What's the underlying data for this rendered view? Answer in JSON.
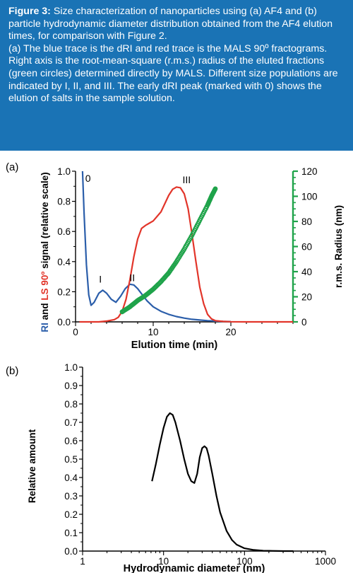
{
  "caption": {
    "label": "Figure 3:",
    "text": "Size characterization of nanoparticles using (a) AF4 and (b) particle hydrodynamic diameter distribution obtained from the AF4 elution times, for comparison with Figure 2.",
    "text2": "(a) The blue trace is the dRI and red trace is the MALS 90º fractograms. Right axis is the root-mean-square (r.m.s.) radius of the eluted fractions (green circles) determined directly by MALS. Different size populations are indicated by I, II, and III. The early dRI peak (marked with 0) shows the elution of salts in the sample solution."
  },
  "colors": {
    "caption_bg": "#1a73b5",
    "ri": "#2b5eaa",
    "ls": "#e2352a",
    "radius": "#1fa34a",
    "hydro": "#000000"
  },
  "chart_data": [
    {
      "panel_label": "(a)",
      "type": "line",
      "xlabel": "Elution time (min)",
      "ylabel_parts": [
        "RI",
        " and ",
        "LS 90º",
        " signal (relative scale)"
      ],
      "y2label": "r.m.s. Radius (nm)",
      "xlim": [
        0,
        28
      ],
      "ylim": [
        0,
        1.0
      ],
      "y2lim": [
        0,
        120
      ],
      "xticks": [
        0,
        10,
        20
      ],
      "xtick_labels": [
        "0",
        "10",
        "20"
      ],
      "yticks": [
        0,
        0.2,
        0.4,
        0.6,
        0.8,
        1.0
      ],
      "ytick_labels": [
        "0.0",
        "0.2",
        "0.4",
        "0.6",
        "0.8",
        "1.0"
      ],
      "y2ticks": [
        0,
        20,
        40,
        60,
        80,
        100,
        120
      ],
      "y2tick_labels": [
        "0",
        "20",
        "40",
        "60",
        "80",
        "100",
        "120"
      ],
      "annotations": [
        {
          "text": "0",
          "x": 1.6,
          "y": 0.93
        },
        {
          "text": "I",
          "x": 3.2,
          "y": 0.26
        },
        {
          "text": "II",
          "x": 7.3,
          "y": 0.27
        },
        {
          "text": "III",
          "x": 14.3,
          "y": 0.92
        }
      ],
      "series": [
        {
          "key": "ri",
          "style": "line",
          "x": [
            0.9,
            1.1,
            1.4,
            1.7,
            2.0,
            2.4,
            3.0,
            3.5,
            4.0,
            4.6,
            5.2,
            5.8,
            6.4,
            7.0,
            7.5,
            8.0,
            8.6,
            9.2,
            10,
            11,
            12,
            13,
            14,
            15,
            16,
            17,
            18,
            19,
            20
          ],
          "y": [
            1.0,
            0.72,
            0.38,
            0.18,
            0.11,
            0.13,
            0.19,
            0.21,
            0.19,
            0.15,
            0.13,
            0.17,
            0.22,
            0.25,
            0.245,
            0.22,
            0.18,
            0.14,
            0.1,
            0.07,
            0.05,
            0.035,
            0.025,
            0.017,
            0.012,
            0.008,
            0.005,
            0.003,
            0.002
          ]
        },
        {
          "key": "ls",
          "style": "line",
          "x": [
            0.5,
            2,
            3,
            4,
            5,
            5.5,
            6,
            6.5,
            7,
            7.5,
            8,
            8.5,
            9,
            9.5,
            10,
            11,
            12,
            12.5,
            13,
            13.5,
            14,
            14.5,
            15,
            15.5,
            16,
            16.5,
            17,
            17.5,
            18,
            19,
            20,
            22,
            24,
            26,
            28
          ],
          "y": [
            0.0,
            0.0,
            0.0,
            0.005,
            0.015,
            0.03,
            0.07,
            0.15,
            0.28,
            0.43,
            0.55,
            0.62,
            0.64,
            0.655,
            0.67,
            0.73,
            0.84,
            0.88,
            0.895,
            0.89,
            0.85,
            0.75,
            0.58,
            0.4,
            0.23,
            0.12,
            0.05,
            0.02,
            0.008,
            0.003,
            0.001,
            0.0,
            0.0,
            0.0,
            0.0
          ]
        },
        {
          "key": "radius",
          "style": "markers",
          "axis": "y2",
          "x": [
            6.0,
            7.0,
            8.0,
            9.0,
            10.0,
            11.0,
            12.0,
            13.0,
            14.0,
            15.0,
            16.0,
            17.0,
            17.5,
            18.0
          ],
          "y": [
            8,
            12,
            17,
            21,
            26,
            32,
            39,
            48,
            58,
            69,
            81,
            93,
            100,
            106
          ]
        }
      ]
    },
    {
      "panel_label": "(b)",
      "type": "line",
      "xscale": "log",
      "xlabel": "Hydrodynamic diameter (nm)",
      "ylabel": "Relative amount",
      "xlim": [
        1,
        1000
      ],
      "ylim": [
        0,
        1.0
      ],
      "xticks": [
        1,
        10,
        100,
        1000
      ],
      "xtick_labels": [
        "1",
        "10",
        "100",
        "1000"
      ],
      "yticks": [
        0,
        0.1,
        0.2,
        0.3,
        0.4,
        0.5,
        0.6,
        0.7,
        0.8,
        0.9,
        1.0
      ],
      "ytick_labels": [
        "0.0",
        "0.1",
        "0.2",
        "0.3",
        "0.4",
        "0.5",
        "0.6",
        "0.7",
        "0.8",
        "0.9",
        "1.0"
      ],
      "series": [
        {
          "key": "hydro",
          "style": "line",
          "x": [
            7.2,
            8,
            9,
            10,
            11,
            12,
            13,
            14,
            16,
            18,
            20,
            22,
            24,
            26,
            28,
            30,
            32,
            34,
            36,
            40,
            45,
            50,
            60,
            70,
            80,
            100,
            130,
            170,
            220,
            300,
            400
          ],
          "y": [
            0.38,
            0.47,
            0.58,
            0.67,
            0.73,
            0.75,
            0.74,
            0.7,
            0.6,
            0.5,
            0.42,
            0.38,
            0.37,
            0.42,
            0.51,
            0.56,
            0.57,
            0.56,
            0.52,
            0.42,
            0.3,
            0.21,
            0.11,
            0.06,
            0.035,
            0.015,
            0.006,
            0.002,
            0.001,
            0.0,
            0.0
          ]
        }
      ]
    }
  ]
}
